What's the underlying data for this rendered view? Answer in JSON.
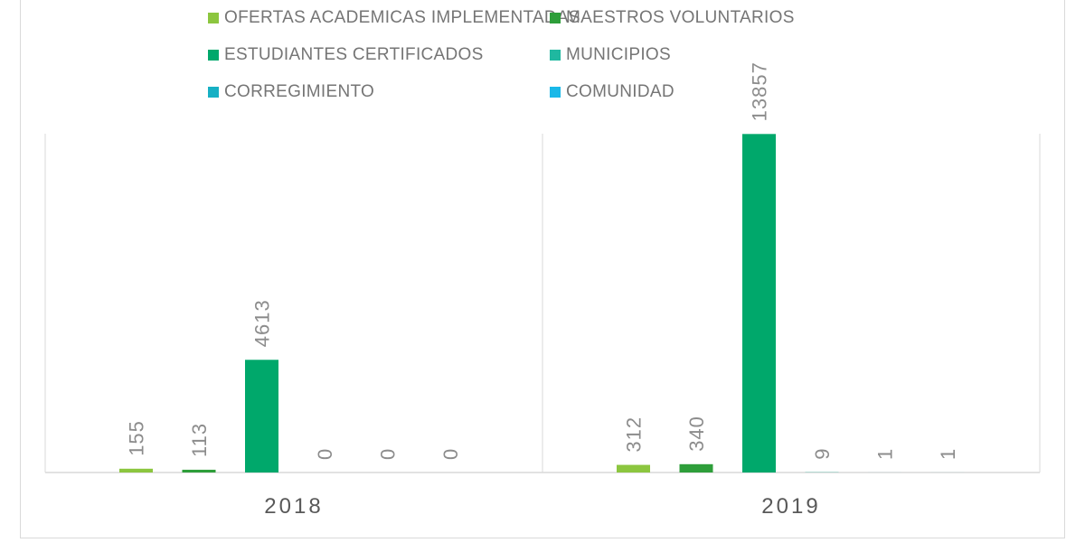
{
  "chart_data": {
    "type": "bar",
    "categories": [
      "2018",
      "2019"
    ],
    "series": [
      {
        "name": "OFERTAS ACADEMICAS IMPLEMENTADAS",
        "color": "#8cc63f",
        "values": [
          155,
          312
        ]
      },
      {
        "name": "MAESTROS VOLUNTARIOS",
        "color": "#2e9e3a",
        "values": [
          113,
          340
        ]
      },
      {
        "name": "ESTUDIANTES CERTIFICADOS",
        "color": "#00a86b",
        "values": [
          4613,
          13857
        ]
      },
      {
        "name": "MUNICIPIOS",
        "color": "#1fb8a0",
        "values": [
          0,
          9
        ]
      },
      {
        "name": "CORREGIMIENTO",
        "color": "#17b0c4",
        "values": [
          0,
          1
        ]
      },
      {
        "name": "COMUNIDAD",
        "color": "#1ab8e8",
        "values": [
          0,
          1
        ]
      }
    ],
    "ylim": [
      0,
      15200
    ],
    "grid": false,
    "legend_position": "top"
  }
}
